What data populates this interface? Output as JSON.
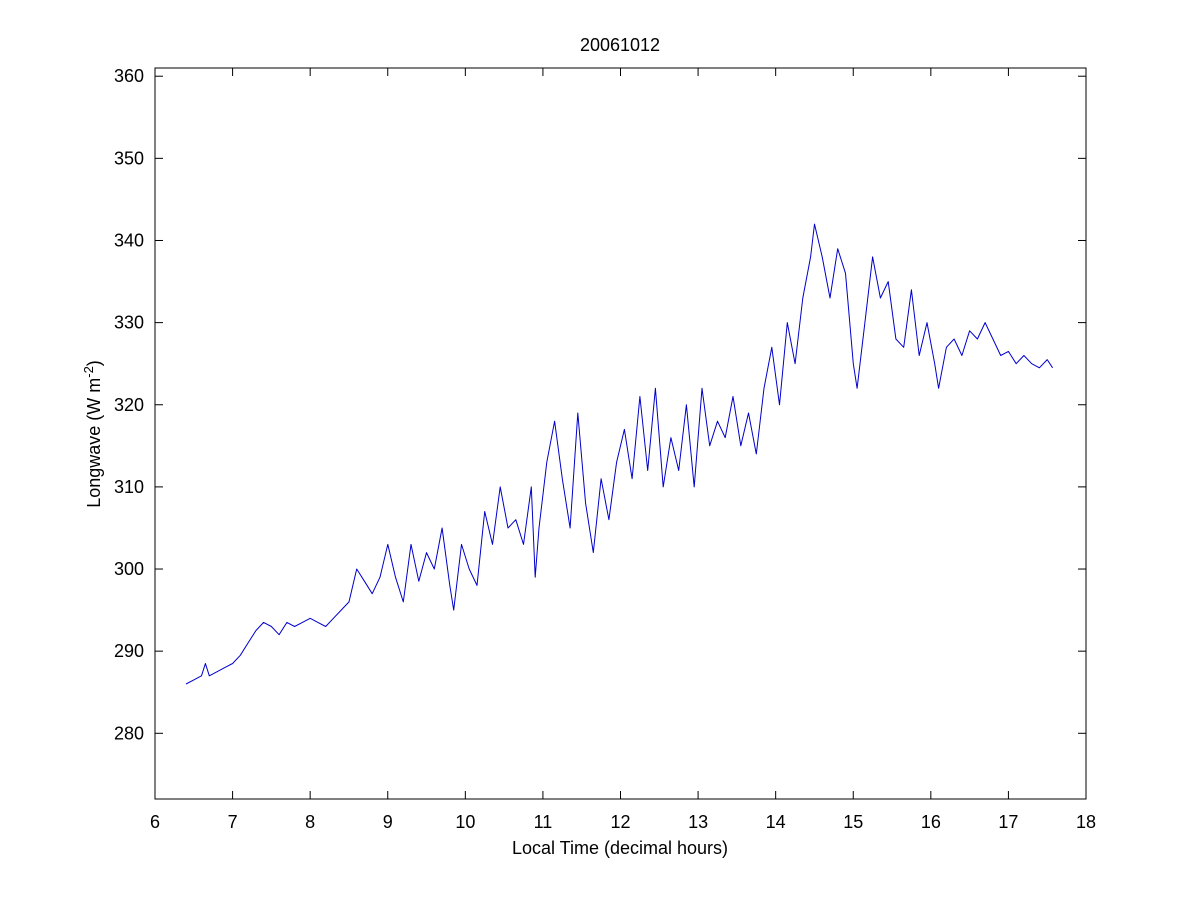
{
  "chart_data": {
    "type": "line",
    "title": "20061012",
    "xlabel": "Local Time (decimal hours)",
    "ylabel_main": "Longwave (W m",
    "ylabel_exponent": "-2",
    "ylabel_close": ")",
    "xlim": [
      6,
      18
    ],
    "ylim": [
      272,
      361
    ],
    "x_ticks": [
      6,
      7,
      8,
      9,
      10,
      11,
      12,
      13,
      14,
      15,
      16,
      17,
      18
    ],
    "y_ticks": [
      280,
      290,
      300,
      310,
      320,
      330,
      340,
      350,
      360
    ],
    "grid": false,
    "line_color": "#0000cc",
    "series": [
      {
        "x": [
          6.4,
          6.5,
          6.6,
          6.65,
          6.7,
          6.8,
          6.9,
          7.0,
          7.1,
          7.2,
          7.3,
          7.4,
          7.5,
          7.6,
          7.7,
          7.8,
          7.9,
          8.0,
          8.1,
          8.2,
          8.3,
          8.4,
          8.5,
          8.6,
          8.7,
          8.8,
          8.9,
          9.0,
          9.1,
          9.2,
          9.3,
          9.4,
          9.5,
          9.6,
          9.7,
          9.8,
          9.85,
          9.95,
          10.05,
          10.15,
          10.25,
          10.35,
          10.45,
          10.55,
          10.65,
          10.75,
          10.85,
          10.9,
          10.95,
          11.05,
          11.15,
          11.25,
          11.35,
          11.45,
          11.55,
          11.65,
          11.75,
          11.85,
          11.95,
          12.05,
          12.15,
          12.25,
          12.35,
          12.45,
          12.55,
          12.65,
          12.75,
          12.85,
          12.95,
          13.05,
          13.15,
          13.25,
          13.35,
          13.45,
          13.55,
          13.65,
          13.75,
          13.85,
          13.95,
          14.05,
          14.15,
          14.25,
          14.35,
          14.45,
          14.5,
          14.6,
          14.7,
          14.8,
          14.9,
          15.0,
          15.05,
          15.15,
          15.25,
          15.35,
          15.45,
          15.55,
          15.65,
          15.75,
          15.85,
          15.95,
          16.05,
          16.1,
          16.2,
          16.3,
          16.4,
          16.5,
          16.6,
          16.7,
          16.8,
          16.9,
          17.0,
          17.1,
          17.2,
          17.3,
          17.4,
          17.5,
          17.57
        ],
        "y": [
          286,
          286.5,
          287,
          288.5,
          287,
          287.5,
          288,
          288.5,
          289.5,
          291,
          292.5,
          293.5,
          293,
          292,
          293.5,
          293,
          293.5,
          294,
          293.5,
          293,
          294,
          295,
          296,
          300,
          298.5,
          297,
          299,
          303,
          299,
          296,
          303,
          298.5,
          302,
          300,
          305,
          298,
          295,
          303,
          300,
          298,
          307,
          303,
          310,
          305,
          306,
          303,
          310,
          299,
          305,
          313,
          318,
          311,
          305,
          319,
          308,
          302,
          311,
          306,
          313,
          317,
          311,
          321,
          312,
          322,
          310,
          316,
          312,
          320,
          310,
          322,
          315,
          318,
          316,
          321,
          315,
          319,
          314,
          322,
          327,
          320,
          330,
          325,
          333,
          338,
          342,
          338,
          333,
          339,
          336,
          325,
          322,
          330,
          338,
          333,
          335,
          328,
          327,
          334,
          326,
          330,
          325,
          322,
          327,
          328,
          326,
          329,
          328,
          330,
          328,
          326,
          326.5,
          325,
          326,
          325,
          324.5,
          325.5,
          324.5
        ]
      }
    ]
  }
}
